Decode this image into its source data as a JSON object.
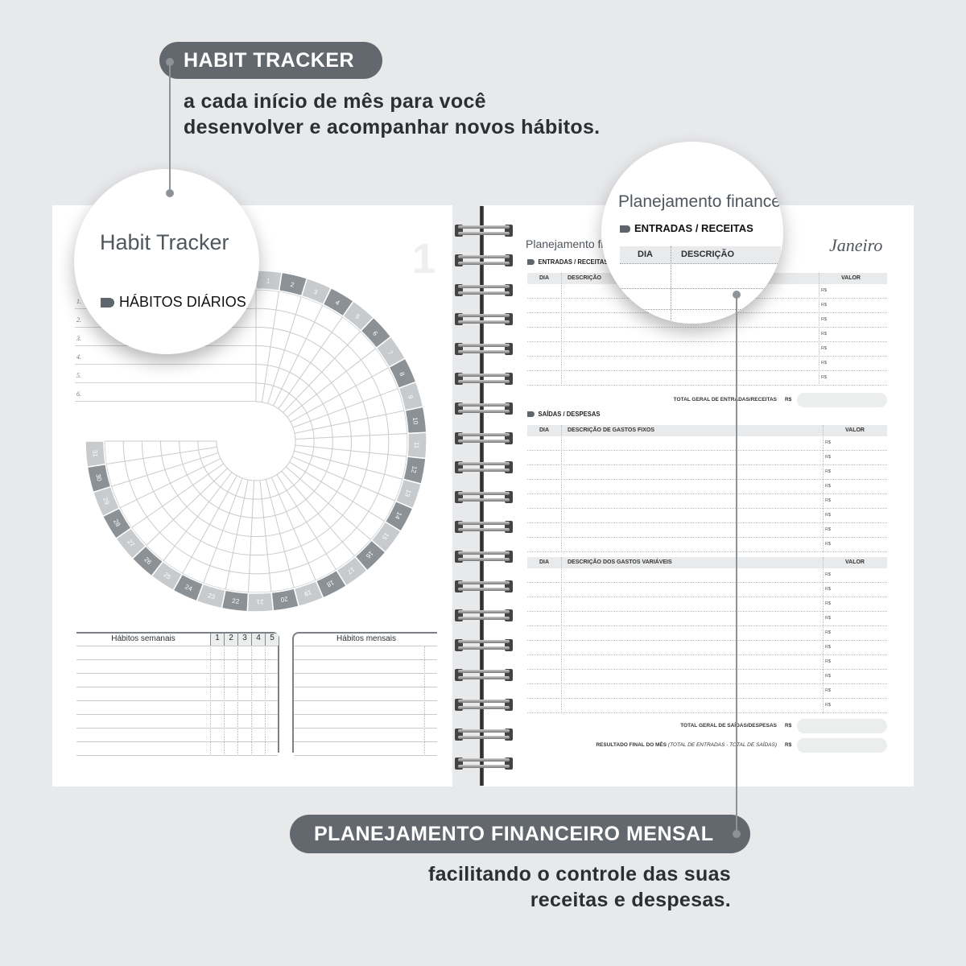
{
  "top_callout": {
    "label": "HABIT TRACKER",
    "lines": [
      "a cada início de mês para você",
      "desenvolver e acompanhar novos hábitos."
    ]
  },
  "bottom_callout": {
    "label": "PLANEJAMENTO FINANCEIRO MENSAL",
    "lines": [
      "facilitando o controle das suas",
      "receitas e despesas."
    ]
  },
  "colors": {
    "background": "#e8e9eb",
    "pill": "#62686e",
    "ring_dark": "#8c9196",
    "ring_light": "#c8cbce",
    "grid": "#c9cbcd"
  },
  "left_page": {
    "big_number": "1",
    "habit_numbers": [
      "1.",
      "2.",
      "3.",
      "4.",
      "5.",
      "6."
    ],
    "day_labels": [
      "1",
      "2",
      "3",
      "4",
      "5",
      "6",
      "7",
      "8",
      "9",
      "10",
      "11",
      "12",
      "13",
      "14",
      "15",
      "16",
      "17",
      "18",
      "19",
      "20",
      "21",
      "22",
      "23",
      "24",
      "25",
      "26",
      "27",
      "28",
      "29",
      "30",
      "31"
    ],
    "weekly": {
      "title": "Hábitos semanais",
      "weeks": [
        "1",
        "2",
        "3",
        "4",
        "5"
      ]
    },
    "monthly": {
      "title": "Hábitos mensais"
    }
  },
  "left_magnifier": {
    "title": "Habit Tracker",
    "section": "HÁBITOS DIÁRIOS"
  },
  "right_magnifier": {
    "title": "Planejamento finance",
    "section": "ENTRADAS / RECEITAS",
    "col_day": "DIA",
    "col_desc": "DESCRIÇÃO"
  },
  "right_page": {
    "title": "Planejamento financeiro",
    "month": "Janeiro",
    "income": {
      "section": "ENTRADAS / RECEITAS",
      "col_day": "DIA",
      "col_desc": "DESCRIÇÃO",
      "col_value": "VALOR",
      "rows": [
        "R$",
        "R$",
        "R$",
        "R$",
        "R$",
        "R$",
        "R$"
      ],
      "total_label": "TOTAL GERAL DE ENTRADAS/RECEITAS",
      "currency": "R$"
    },
    "expenses": {
      "section": "SAÍDAS / DESPESAS",
      "fixed": {
        "col_day": "DIA",
        "col_desc": "DESCRIÇÃO DE GASTOS FIXOS",
        "col_value": "VALOR",
        "rows": [
          "R$",
          "R$",
          "R$",
          "R$",
          "R$",
          "R$",
          "R$",
          "R$"
        ]
      },
      "variable": {
        "col_day": "DIA",
        "col_desc": "DESCRIÇÃO DOS GASTOS VARIÁVEIS",
        "col_value": "VALOR",
        "rows": [
          "R$",
          "R$",
          "R$",
          "R$",
          "R$",
          "R$",
          "R$",
          "R$",
          "R$",
          "R$"
        ]
      },
      "total_label": "TOTAL GERAL DE SAÍDAS/DESPESAS",
      "currency": "R$"
    },
    "result": {
      "label": "RESULTADO FINAL DO MÊS",
      "note": "(TOTAL DE ENTRADAS - TOTAL DE SAÍDAS)",
      "currency": "R$"
    }
  }
}
